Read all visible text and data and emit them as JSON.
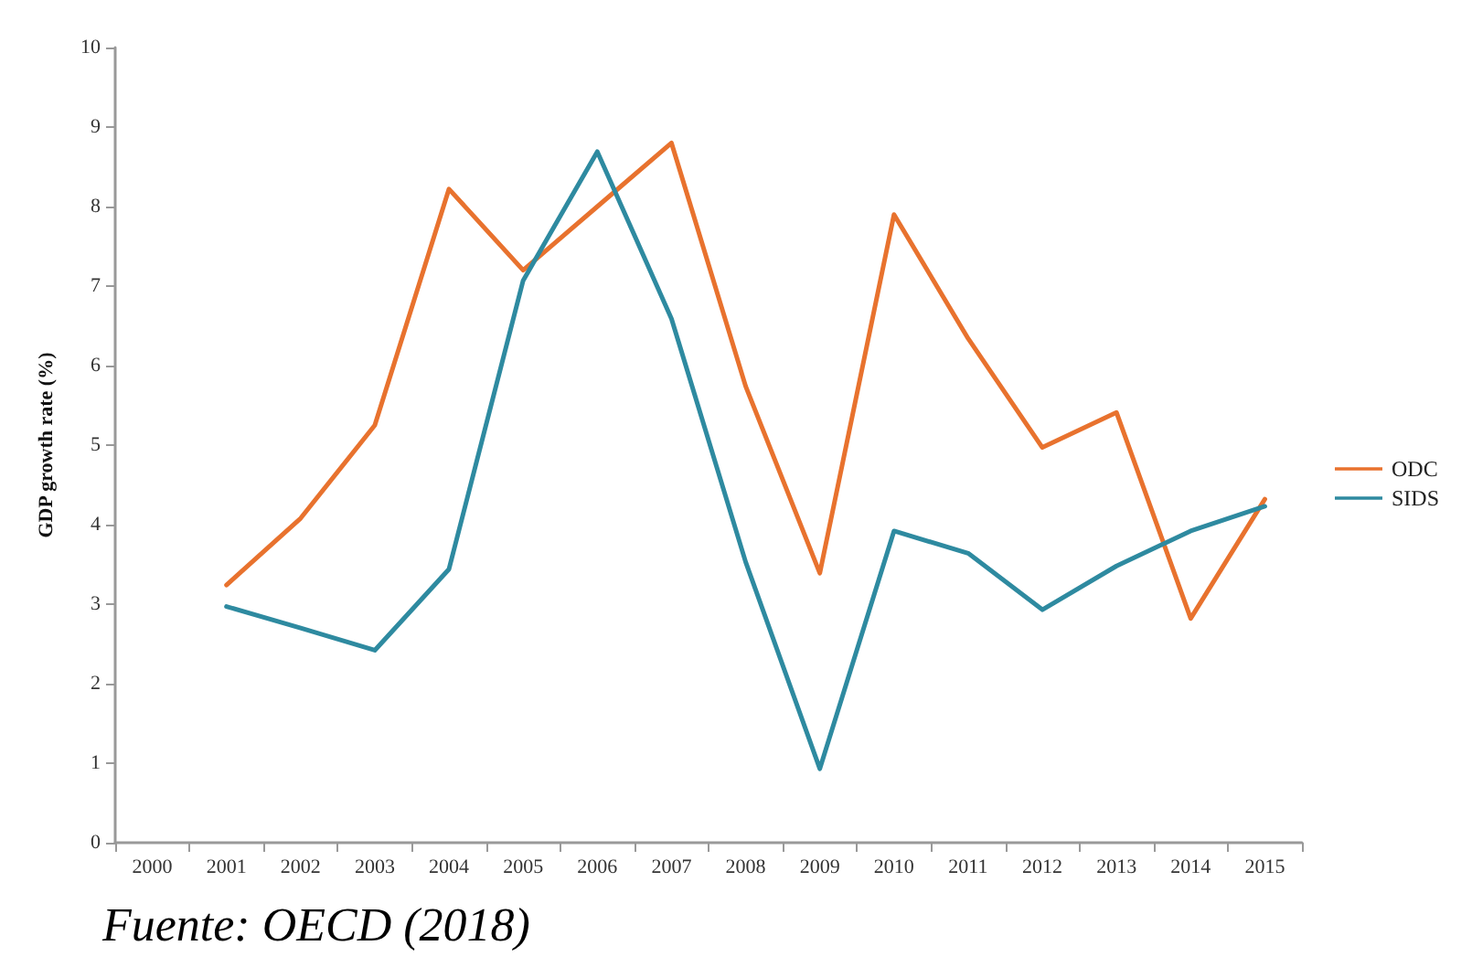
{
  "chart_data": {
    "type": "line",
    "ylabel": "GDP growth rate (%)",
    "categories": [
      "2000",
      "2001",
      "2002",
      "2003",
      "2004",
      "2005",
      "2006",
      "2007",
      "2008",
      "2009",
      "2010",
      "2011",
      "2012",
      "2013",
      "2014",
      "2015"
    ],
    "series": [
      {
        "name": "ODC",
        "color": "#e8722e",
        "values": [
          null,
          3.24,
          4.08,
          5.25,
          8.22,
          7.2,
          8.0,
          8.8,
          5.74,
          3.39,
          7.9,
          6.34,
          4.97,
          5.41,
          2.82,
          4.32
        ]
      },
      {
        "name": "SIDS",
        "color": "#2e8aa0",
        "values": [
          null,
          2.97,
          2.7,
          2.42,
          3.44,
          7.07,
          8.69,
          6.59,
          3.53,
          0.93,
          3.92,
          3.64,
          2.93,
          3.48,
          3.92,
          4.23
        ]
      }
    ],
    "ylim": [
      0,
      10
    ],
    "yticks": [
      0,
      1,
      2,
      3,
      4,
      5,
      6,
      7,
      8,
      9,
      10
    ],
    "grid": false,
    "legend": "right",
    "marker": "none",
    "line_style": "solid",
    "annotations": [
      "Fuente: OECD (2018)"
    ]
  }
}
